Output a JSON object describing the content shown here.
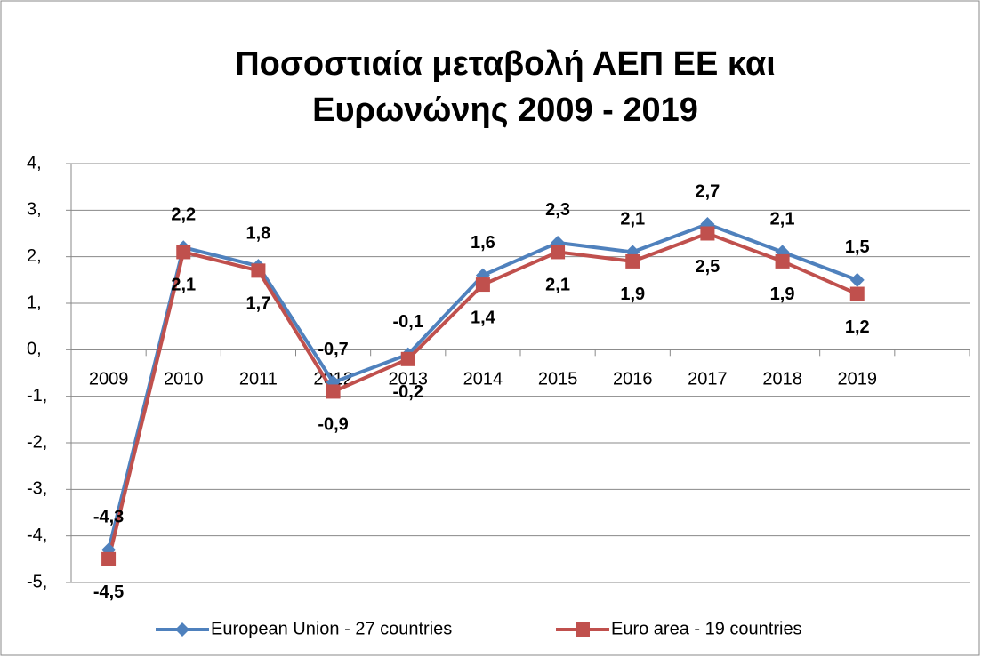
{
  "chart_data": {
    "type": "line",
    "title": [
      "Ποσοστιαία μεταβολή  ΑΕΠ ΕΕ και",
      "Ευρωνώνης 2009 - 2019"
    ],
    "categories": [
      "2009",
      "2010",
      "2011",
      "2012",
      "2013",
      "2014",
      "2015",
      "2016",
      "2017",
      "2018",
      "2019",
      null
    ],
    "series": [
      {
        "name": "European Union - 27 countries",
        "color": "#4f81bd",
        "marker": "diamond",
        "values": [
          -4.3,
          2.2,
          1.8,
          -0.7,
          -0.1,
          1.6,
          2.3,
          2.1,
          2.7,
          2.1,
          1.5,
          null
        ],
        "value_labels": [
          "-4,3",
          "2,2",
          "1,8",
          "-0,7",
          "-0,1",
          "1,6",
          "2,3",
          "2,1",
          "2,7",
          "2,1",
          "1,5",
          null
        ]
      },
      {
        "name": "Euro area - 19 countries",
        "color": "#c0504d",
        "marker": "square",
        "values": [
          -4.5,
          2.1,
          1.7,
          -0.9,
          -0.2,
          1.4,
          2.1,
          1.9,
          2.5,
          1.9,
          1.2,
          null
        ],
        "value_labels": [
          "-4,5",
          "2,1",
          "1,7",
          "-0,9",
          "-0,2",
          "1,4",
          "2,1",
          "1,9",
          "2,5",
          "1,9",
          "1,2",
          null
        ]
      }
    ],
    "ylim": [
      -5,
      4
    ],
    "yticks": [
      {
        "value": -5,
        "label": "-5,"
      },
      {
        "value": -4,
        "label": "-4,"
      },
      {
        "value": -3,
        "label": "-3,"
      },
      {
        "value": -2,
        "label": "-2,"
      },
      {
        "value": -1,
        "label": "-1,"
      },
      {
        "value": 0,
        "label": "0,"
      },
      {
        "value": 1,
        "label": "1,"
      },
      {
        "value": 2,
        "label": "2,"
      },
      {
        "value": 3,
        "label": "3,"
      },
      {
        "value": 4,
        "label": "4,"
      }
    ],
    "grid": true,
    "legend": "bottom"
  }
}
